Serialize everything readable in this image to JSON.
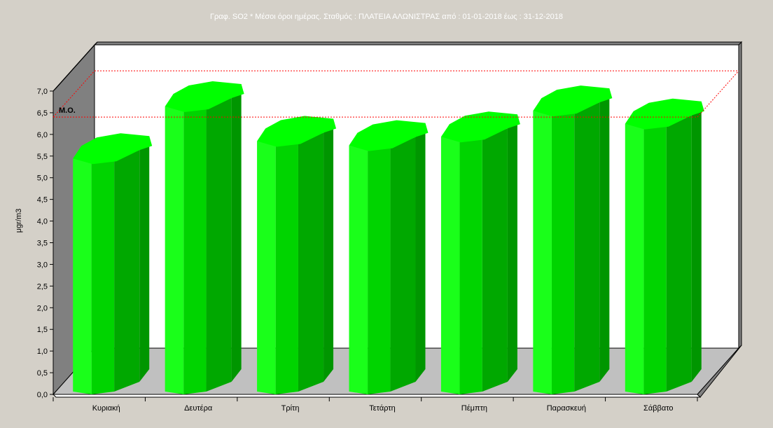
{
  "chart_data": {
    "type": "bar",
    "style": "3d-octagonal-cylinder",
    "title": "Γραφ. SO2 * Μέσοι όροι ημέρας. Σταθμός : ΠΛΑΤΕΙΑ ΑΛΩΝΙΣΤΡΑΣ από : 01-01-2018   έως : 31-12-2018",
    "xlabel": "",
    "ylabel": "μgr/m3",
    "ylim": [
      0,
      7
    ],
    "ytick_step": 0.5,
    "yticks": [
      "0,0",
      "0,5",
      "1,0",
      "1,5",
      "2,0",
      "2,5",
      "3,0",
      "3,5",
      "4,0",
      "4,5",
      "5,0",
      "5,5",
      "6,0",
      "6,5",
      "7,0"
    ],
    "categories": [
      "Κυριακή",
      "Δευτέρα",
      "Τρίτη",
      "Τετάρτη",
      "Πέμπτη",
      "Παρασκευή",
      "Σάββατο"
    ],
    "values": [
      5.8,
      7.0,
      6.2,
      6.1,
      6.3,
      6.9,
      6.6
    ],
    "mean_line": {
      "label": "Μ.Ο.",
      "value": 6.4,
      "color": "#ff0000"
    },
    "bar_colors": {
      "light": "#1aff1a",
      "mid": "#00d400",
      "dark": "#00a800",
      "top": "#00ff00"
    },
    "grid": false,
    "legend": "none"
  }
}
